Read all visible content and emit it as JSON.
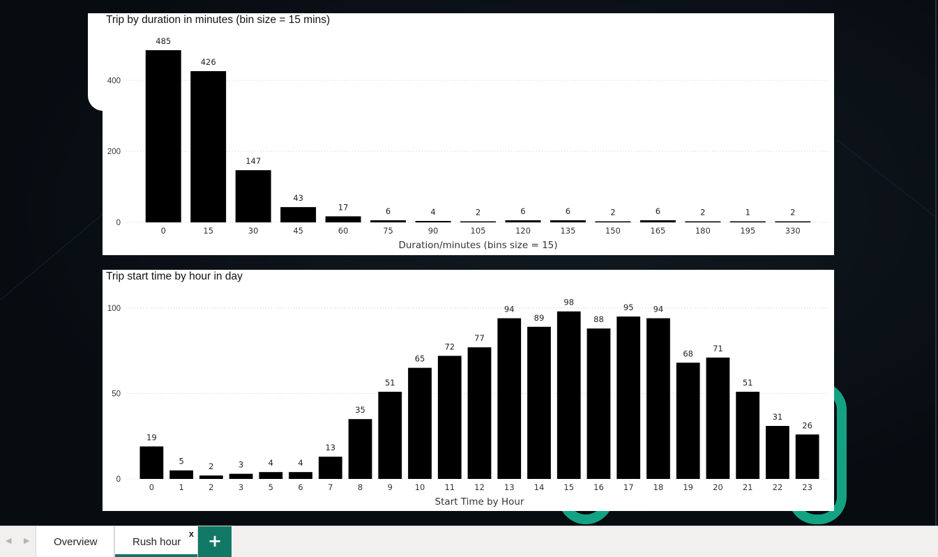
{
  "tabs": {
    "items": [
      {
        "label": "Overview",
        "active": false
      },
      {
        "label": "Rush hour",
        "active": true
      }
    ],
    "close_glyph": "x",
    "add_glyph": "+"
  },
  "colors": {
    "bar": "#000000",
    "accent": "#117865",
    "deco_ring": "#13a383",
    "background": "#0a1016"
  },
  "chart_data": [
    {
      "type": "bar",
      "title": "Trip by duration in minutes (bin size = 15 mins)",
      "xlabel": "Duration/minutes (bins size = 15)",
      "ylabel": "",
      "categories": [
        "0",
        "15",
        "30",
        "45",
        "60",
        "75",
        "90",
        "105",
        "120",
        "135",
        "150",
        "165",
        "180",
        "195",
        "330"
      ],
      "values": [
        485,
        426,
        147,
        43,
        17,
        6,
        4,
        2,
        6,
        6,
        2,
        6,
        2,
        1,
        2
      ],
      "ylim": [
        0,
        540
      ],
      "yticks": [
        0,
        200,
        400
      ],
      "grid": true,
      "data_labels": true,
      "legend": "none"
    },
    {
      "type": "bar",
      "title": "Trip start time by hour in day",
      "xlabel": "Start Time by Hour",
      "ylabel": "",
      "categories": [
        "0",
        "1",
        "2",
        "3",
        "5",
        "6",
        "7",
        "8",
        "9",
        "10",
        "11",
        "12",
        "13",
        "14",
        "15",
        "16",
        "17",
        "18",
        "19",
        "20",
        "21",
        "22",
        "23"
      ],
      "values": [
        19,
        5,
        2,
        3,
        4,
        4,
        13,
        35,
        51,
        65,
        72,
        77,
        94,
        89,
        98,
        88,
        95,
        94,
        68,
        71,
        51,
        31,
        26
      ],
      "ylim": [
        0,
        104
      ],
      "yticks": [
        0,
        50,
        100
      ],
      "grid": true,
      "data_labels": true,
      "legend": "none"
    }
  ]
}
